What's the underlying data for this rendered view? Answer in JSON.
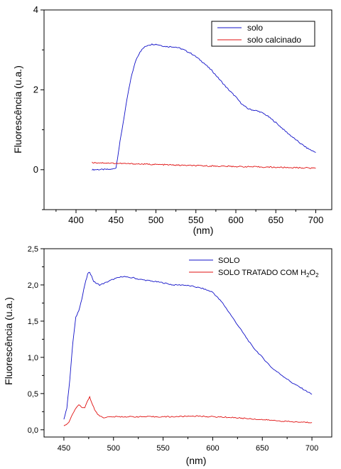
{
  "chart_data": [
    {
      "type": "line",
      "xlabel": "(nm)",
      "ylabel": "Fluorescência (u.a.)",
      "xlim": [
        360,
        720
      ],
      "ylim": [
        -1,
        4
      ],
      "xticks": [
        400,
        450,
        500,
        550,
        600,
        650,
        700
      ],
      "yticks": [
        0,
        2,
        4
      ],
      "legend_position": "top-right",
      "series": [
        {
          "name": "solo",
          "color": "#1010c8",
          "x": [
            420,
            445,
            450,
            452,
            455,
            460,
            465,
            470,
            475,
            480,
            485,
            490,
            495,
            500,
            505,
            510,
            515,
            520,
            525,
            530,
            535,
            540,
            545,
            550,
            560,
            570,
            580,
            590,
            600,
            605,
            610,
            615,
            620,
            625,
            630,
            635,
            640,
            650,
            660,
            670,
            680,
            690,
            700
          ],
          "values": [
            0.0,
            0.01,
            0.05,
            0.3,
            0.7,
            1.3,
            1.9,
            2.4,
            2.75,
            2.95,
            3.06,
            3.12,
            3.14,
            3.14,
            3.12,
            3.09,
            3.08,
            3.08,
            3.07,
            3.04,
            3.0,
            2.95,
            2.9,
            2.83,
            2.67,
            2.48,
            2.25,
            2.02,
            1.82,
            1.7,
            1.6,
            1.53,
            1.5,
            1.48,
            1.45,
            1.4,
            1.34,
            1.18,
            1.0,
            0.83,
            0.67,
            0.53,
            0.43
          ]
        },
        {
          "name": "solo calcinado",
          "color": "#e01010",
          "x": [
            420,
            450,
            500,
            550,
            600,
            650,
            700
          ],
          "values": [
            0.18,
            0.16,
            0.13,
            0.1,
            0.08,
            0.06,
            0.04
          ]
        }
      ]
    },
    {
      "type": "line",
      "xlabel": "(nm)",
      "ylabel": "Fluorescência (u.a.)",
      "xlim": [
        430,
        720
      ],
      "ylim": [
        -0.1,
        2.5
      ],
      "xticks": [
        450,
        500,
        550,
        600,
        650,
        700
      ],
      "yticks": [
        0.0,
        0.5,
        1.0,
        1.5,
        2.0,
        2.5
      ],
      "ytick_labels": [
        "0,0",
        "0,5",
        "1,0",
        "1,5",
        "2,0",
        "2,5"
      ],
      "legend_position": "top-right",
      "series": [
        {
          "name": "SOLO",
          "legend_parts": [
            "SOLO"
          ],
          "color": "#1010c8",
          "x": [
            450,
            453,
            456,
            459,
            462,
            465,
            468,
            471,
            474,
            476,
            478,
            480,
            483,
            486,
            490,
            495,
            500,
            505,
            510,
            515,
            520,
            525,
            530,
            540,
            550,
            560,
            570,
            580,
            590,
            600,
            610,
            620,
            630,
            640,
            650,
            660,
            670,
            680,
            690,
            700
          ],
          "values": [
            0.15,
            0.3,
            0.7,
            1.2,
            1.55,
            1.65,
            1.8,
            2.0,
            2.15,
            2.18,
            2.12,
            2.05,
            2.02,
            2.0,
            2.02,
            2.05,
            2.08,
            2.1,
            2.12,
            2.1,
            2.1,
            2.08,
            2.07,
            2.05,
            2.03,
            2.0,
            2.0,
            1.98,
            1.95,
            1.9,
            1.75,
            1.55,
            1.35,
            1.15,
            1.0,
            0.85,
            0.75,
            0.65,
            0.57,
            0.49
          ]
        },
        {
          "name": "SOLO TRATADO COM H2O2",
          "legend_parts": [
            "SOLO TRATADO COM H",
            "2",
            "O",
            "2"
          ],
          "color": "#e01010",
          "x": [
            450,
            455,
            460,
            465,
            468,
            471,
            473,
            476,
            479,
            482,
            485,
            490,
            500,
            520,
            540,
            560,
            580,
            600,
            620,
            640,
            660,
            680,
            700
          ],
          "values": [
            0.05,
            0.1,
            0.25,
            0.35,
            0.3,
            0.3,
            0.38,
            0.45,
            0.35,
            0.25,
            0.2,
            0.17,
            0.18,
            0.18,
            0.18,
            0.18,
            0.19,
            0.18,
            0.17,
            0.15,
            0.13,
            0.11,
            0.1
          ]
        }
      ]
    }
  ]
}
